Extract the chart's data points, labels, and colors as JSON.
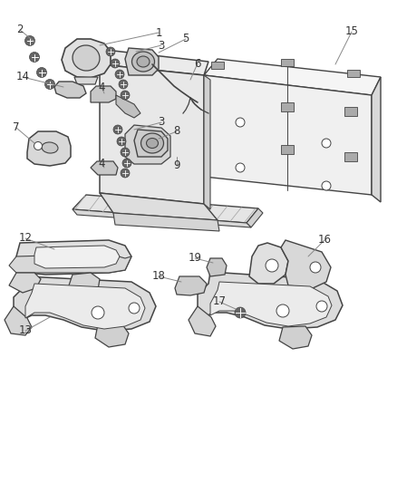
{
  "bg_color": "#ffffff",
  "fig_width": 4.38,
  "fig_height": 5.33,
  "dpi": 100,
  "line_color": "#555555",
  "label_color": "#333333",
  "label_fontsize": 8.5,
  "callout_line_color": "#888888",
  "part_fill": "#f2f2f2",
  "part_fill_dark": "#e0e0e0",
  "part_fill_darker": "#cccccc",
  "part_stroke": "#444444",
  "part_stroke_lw": 1.0
}
